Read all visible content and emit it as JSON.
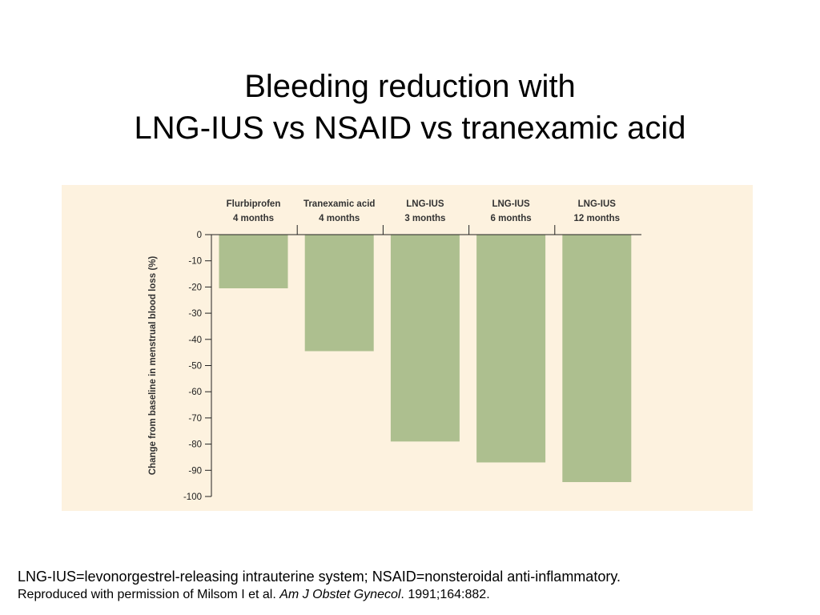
{
  "slide": {
    "title_line1": "Bleeding reduction with",
    "title_line2": "LNG-IUS vs NSAID vs tranexamic acid"
  },
  "chart_data": {
    "type": "bar",
    "categories": [
      [
        "Flurbiprofen",
        "4 months"
      ],
      [
        "Tranexamic acid",
        "4 months"
      ],
      [
        "LNG-IUS",
        "3 months"
      ],
      [
        "LNG-IUS",
        "6  months"
      ],
      [
        "LNG-IUS",
        "12 months"
      ]
    ],
    "values": [
      -20.5,
      -44.5,
      -79,
      -87,
      -94.5
    ],
    "ylabel": "Change from baseline in menstrual blood loss (%)",
    "xlabel": "",
    "ylim": [
      -100,
      0
    ],
    "yticks": [
      0,
      -10,
      -20,
      -30,
      -40,
      -50,
      -60,
      -70,
      -80,
      -90,
      -100
    ],
    "bar_color": "#adbf8f",
    "background_color": "#fdf2df",
    "grid": false
  },
  "footnote": {
    "line1": "LNG-IUS=levonorgestrel-releasing intrauterine system; NSAID=nonsteroidal anti-inflammatory.",
    "line2_prefix": "Reproduced with permission of Milsom I et al. ",
    "line2_journal": "Am J Obstet Gynecol",
    "line2_suffix": ". 1991;164:882."
  }
}
